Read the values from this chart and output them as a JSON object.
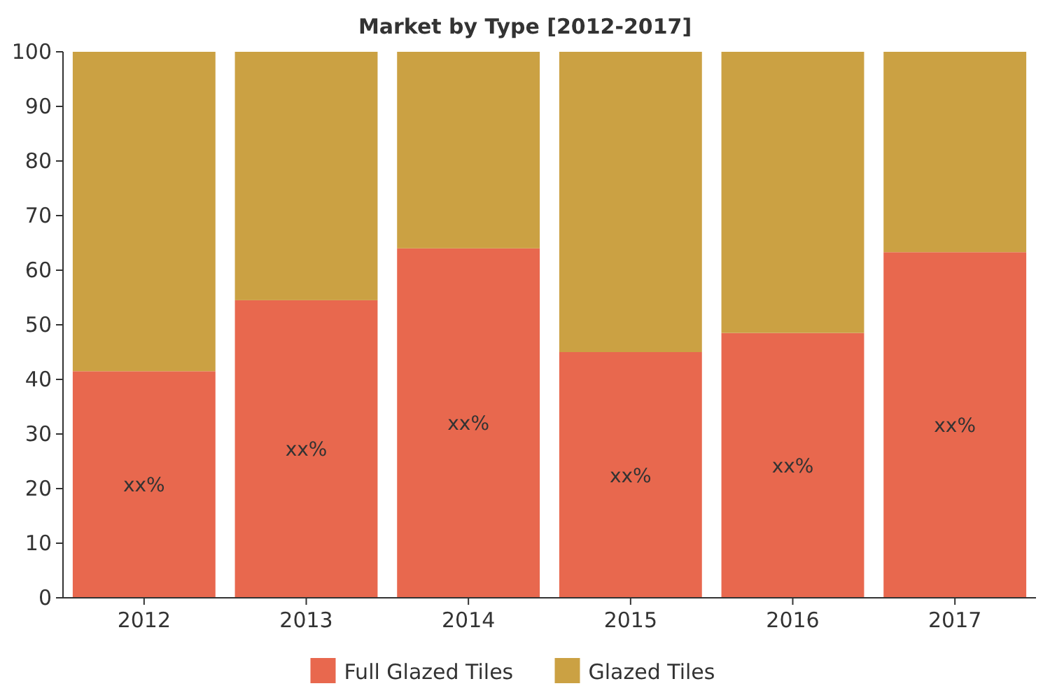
{
  "chart_data": {
    "type": "bar",
    "title": "Market by Type [2012-2017]",
    "categories": [
      "2012",
      "2013",
      "2014",
      "2015",
      "2016",
      "2017"
    ],
    "stacked": true,
    "ylim": [
      0,
      100
    ],
    "yticks": [
      0,
      10,
      20,
      30,
      40,
      50,
      60,
      70,
      80,
      90,
      100
    ],
    "legend": "bottom",
    "series": [
      {
        "name": "Full Glazed Tiles",
        "color": "#e8684e",
        "values": [
          41.5,
          54.5,
          64,
          45,
          48.5,
          63.3
        ],
        "value_labels": [
          "xx%",
          "xx%",
          "xx%",
          "xx%",
          "xx%",
          "xx%"
        ]
      },
      {
        "name": "Glazed Tiles",
        "color": "#cba143",
        "values": [
          58.5,
          45.5,
          36,
          55,
          51.5,
          36.7
        ]
      }
    ]
  }
}
